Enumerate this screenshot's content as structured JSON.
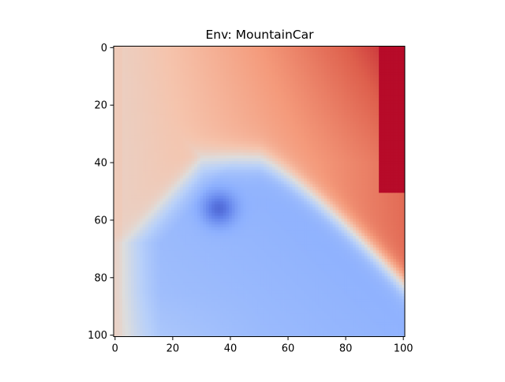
{
  "chart_data": {
    "type": "heatmap",
    "title": "Env: MountainCar",
    "xlabel": "",
    "ylabel": "",
    "colormap": "coolwarm",
    "x_range": [
      0,
      100
    ],
    "y_range": [
      0,
      100
    ],
    "y_inverted": true,
    "grid": false,
    "x_ticks": [
      0,
      20,
      40,
      60,
      80,
      100
    ],
    "y_ticks": [
      0,
      20,
      40,
      60,
      80,
      100
    ],
    "grid_size": 101,
    "regions": [
      {
        "name": "warm",
        "location": "top and upper-right",
        "value_range": [
          0.62,
          1.0
        ]
      },
      {
        "name": "cool",
        "location": "lower-right lobe",
        "value_range": [
          0.0,
          0.3
        ],
        "minimum_at": {
          "x": 36,
          "y": 56
        }
      },
      {
        "name": "neutral",
        "location": "left and bottom edges",
        "value_range": [
          0.45,
          0.62
        ]
      }
    ],
    "max_band": {
      "x_from": 92,
      "y_to": 50
    }
  }
}
